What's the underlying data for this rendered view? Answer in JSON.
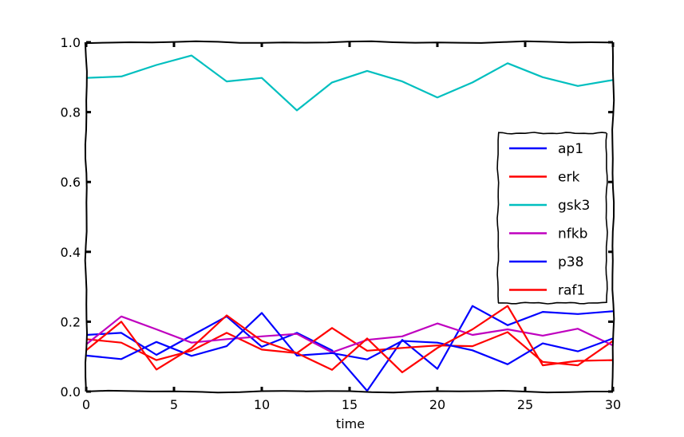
{
  "chart_data": {
    "type": "line",
    "xlabel": "time",
    "ylabel": "",
    "xlim": [
      0,
      30
    ],
    "ylim": [
      0,
      1.0
    ],
    "x_ticks": [
      0,
      5,
      10,
      15,
      20,
      25,
      30
    ],
    "y_ticks": [
      "0.0",
      "0.2",
      "0.4",
      "0.6",
      "0.8",
      "1.0"
    ],
    "legend_position": "right",
    "grid": false,
    "x": [
      0,
      2,
      4,
      6,
      8,
      10,
      12,
      14,
      16,
      18,
      20,
      22,
      24,
      26,
      28,
      30
    ],
    "series": [
      {
        "name": "ap1",
        "color": "#0000ff",
        "values": [
          0.162,
          0.168,
          0.105,
          0.16,
          0.215,
          0.128,
          0.168,
          0.118,
          0.002,
          0.148,
          0.065,
          0.245,
          0.19,
          0.228,
          0.222,
          0.23
        ]
      },
      {
        "name": "erk",
        "color": "#ff0000",
        "values": [
          0.15,
          0.14,
          0.09,
          0.117,
          0.168,
          0.12,
          0.11,
          0.182,
          0.117,
          0.125,
          0.132,
          0.13,
          0.17,
          0.085,
          0.075,
          0.145
        ]
      },
      {
        "name": "gsk3",
        "color": "#00bfbf",
        "values": [
          0.898,
          0.902,
          0.935,
          0.962,
          0.888,
          0.898,
          0.805,
          0.885,
          0.918,
          0.888,
          0.842,
          0.885,
          0.94,
          0.9,
          0.875,
          0.892
        ]
      },
      {
        "name": "nfkb",
        "color": "#bf00bf",
        "values": [
          0.135,
          0.215,
          0.178,
          0.14,
          0.15,
          0.158,
          0.165,
          0.112,
          0.148,
          0.158,
          0.195,
          0.162,
          0.178,
          0.16,
          0.18,
          0.132
        ]
      },
      {
        "name": "p38",
        "color": "#0000ff",
        "values": [
          0.103,
          0.093,
          0.142,
          0.102,
          0.13,
          0.225,
          0.103,
          0.11,
          0.092,
          0.145,
          0.14,
          0.118,
          0.078,
          0.138,
          0.115,
          0.152
        ]
      },
      {
        "name": "raf1",
        "color": "#ff0000",
        "values": [
          0.118,
          0.2,
          0.063,
          0.125,
          0.218,
          0.145,
          0.11,
          0.062,
          0.152,
          0.055,
          0.125,
          0.178,
          0.245,
          0.075,
          0.088,
          0.09
        ]
      }
    ]
  }
}
